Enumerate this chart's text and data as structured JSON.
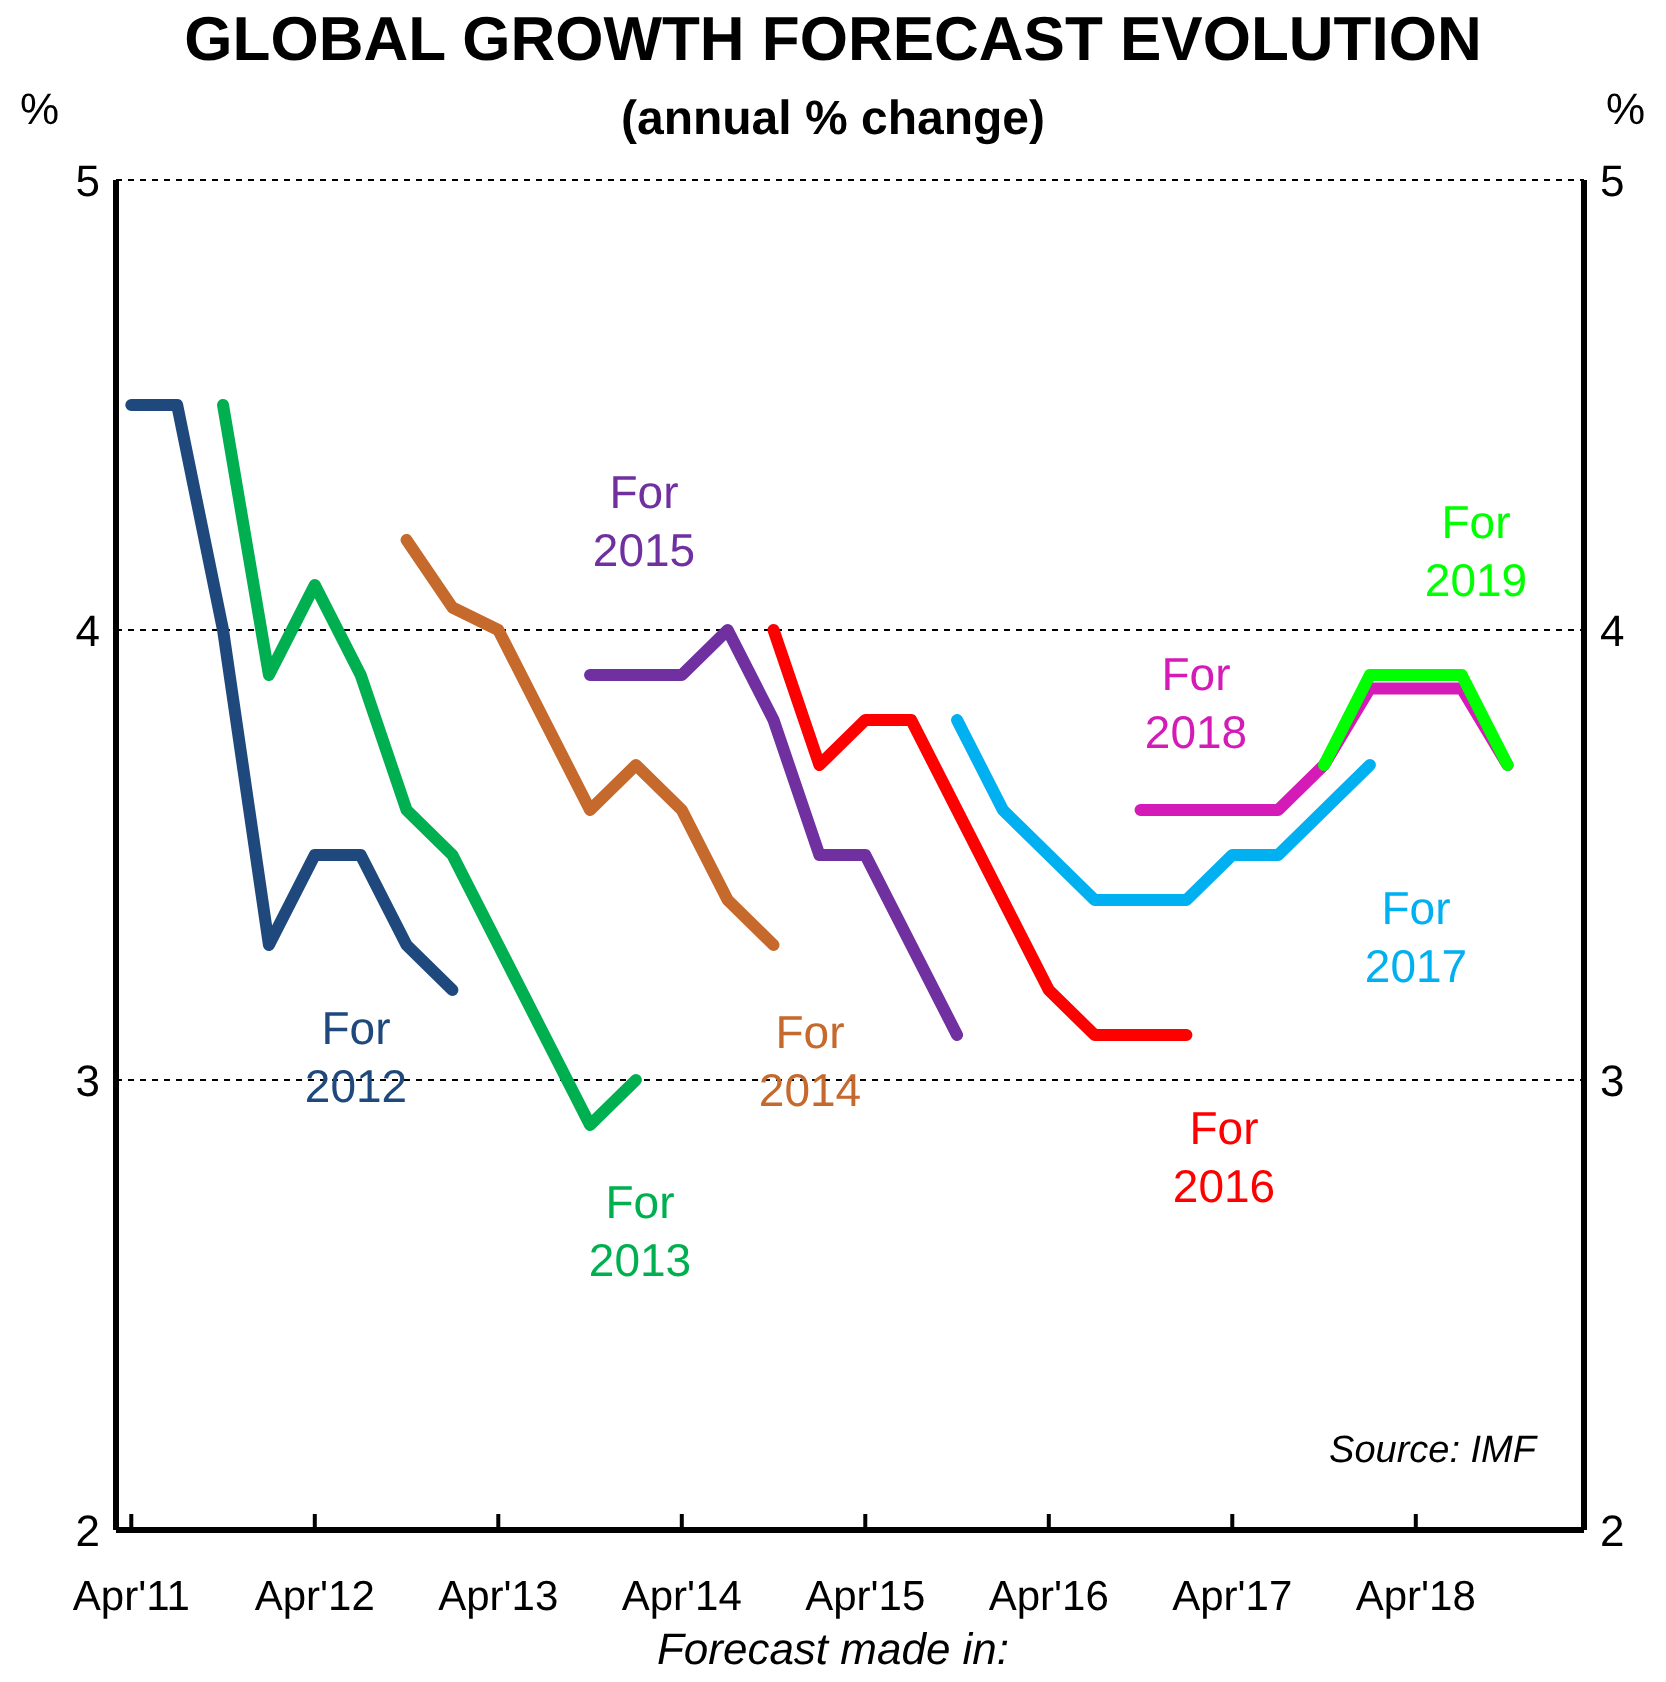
{
  "chart_data": {
    "type": "line",
    "title": "GLOBAL GROWTH FORECAST EVOLUTION",
    "subtitle": "(annual % change)",
    "xlabel": "Forecast made in:",
    "ylabel": "%",
    "y2label": "%",
    "annotations": [
      "Source: IMF"
    ],
    "xlim": [
      "2011-03",
      "2019-03"
    ],
    "xticks": [
      {
        "value": "2011-04",
        "label": "Apr'11"
      },
      {
        "value": "2012-04",
        "label": "Apr'12"
      },
      {
        "value": "2013-04",
        "label": "Apr'13"
      },
      {
        "value": "2014-04",
        "label": "Apr'14"
      },
      {
        "value": "2015-04",
        "label": "Apr'15"
      },
      {
        "value": "2016-04",
        "label": "Apr'16"
      },
      {
        "value": "2017-04",
        "label": "Apr'17"
      },
      {
        "value": "2018-04",
        "label": "Apr'18"
      }
    ],
    "ylim": [
      2,
      5
    ],
    "yticks": [
      2,
      3,
      4,
      5
    ],
    "y2lim": [
      2,
      5
    ],
    "y2ticks": [
      2,
      3,
      4,
      5
    ],
    "grid": "y",
    "legend": false,
    "marker": "none",
    "line_style": "solid",
    "series": [
      {
        "name": "For 2012",
        "color": "#1f497d",
        "x": [
          "2011-04",
          "2011-07",
          "2011-10",
          "2012-01",
          "2012-04",
          "2012-07",
          "2012-10",
          "2013-01"
        ],
        "values": [
          4.5,
          4.5,
          4.0,
          3.3,
          3.5,
          3.5,
          3.3,
          3.2
        ]
      },
      {
        "name": "For 2013",
        "color": "#00b050",
        "x": [
          "2011-10",
          "2012-01",
          "2012-04",
          "2012-07",
          "2012-10",
          "2013-01",
          "2013-04",
          "2013-07",
          "2013-10",
          "2014-01"
        ],
        "values": [
          4.5,
          3.9,
          4.1,
          3.9,
          3.6,
          3.5,
          3.3,
          3.1,
          2.9,
          3.0
        ]
      },
      {
        "name": "For 2014",
        "color": "#c5692c",
        "x": [
          "2012-10",
          "2013-01",
          "2013-04",
          "2013-07",
          "2013-10",
          "2014-01",
          "2014-04",
          "2014-07",
          "2014-10"
        ],
        "values": [
          4.2,
          4.05,
          4.0,
          3.8,
          3.6,
          3.7,
          3.6,
          3.4,
          3.3
        ]
      },
      {
        "name": "For 2015",
        "color": "#7030a0",
        "x": [
          "2013-10",
          "2014-01",
          "2014-04",
          "2014-07",
          "2014-10",
          "2015-01",
          "2015-04",
          "2015-07",
          "2015-10"
        ],
        "values": [
          3.9,
          3.9,
          3.9,
          4.0,
          3.8,
          3.5,
          3.5,
          3.3,
          3.1
        ]
      },
      {
        "name": "For 2016",
        "color": "#ff0000",
        "x": [
          "2014-10",
          "2015-01",
          "2015-04",
          "2015-07",
          "2015-10",
          "2016-01",
          "2016-04",
          "2016-07",
          "2016-10",
          "2017-01"
        ],
        "values": [
          4.0,
          3.7,
          3.8,
          3.8,
          3.6,
          3.4,
          3.2,
          3.1,
          3.1,
          3.1
        ]
      },
      {
        "name": "For 2017",
        "color": "#00b0f0",
        "x": [
          "2015-10",
          "2016-01",
          "2016-04",
          "2016-07",
          "2016-10",
          "2017-01",
          "2017-04",
          "2017-07",
          "2017-10",
          "2018-01"
        ],
        "values": [
          3.8,
          3.6,
          3.5,
          3.4,
          3.4,
          3.4,
          3.5,
          3.5,
          3.6,
          3.7
        ]
      },
      {
        "name": "For 2018",
        "color": "#d41bb8",
        "x": [
          "2016-10",
          "2017-01",
          "2017-04",
          "2017-07",
          "2017-10",
          "2018-01",
          "2018-04",
          "2018-07",
          "2018-10"
        ],
        "values": [
          3.6,
          3.6,
          3.6,
          3.6,
          3.7,
          3.87,
          3.87,
          3.87,
          3.7
        ]
      },
      {
        "name": "For 2019",
        "color": "#00ff00",
        "x": [
          "2017-10",
          "2018-01",
          "2018-04",
          "2018-07",
          "2018-10"
        ],
        "values": [
          3.7,
          3.9,
          3.9,
          3.9,
          3.7
        ]
      }
    ]
  }
}
